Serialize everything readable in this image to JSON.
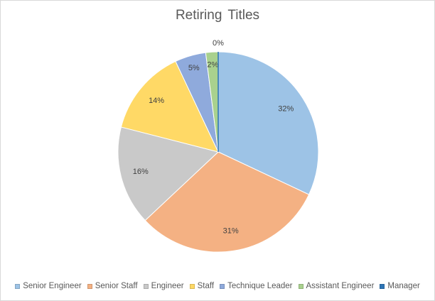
{
  "chart_data": {
    "type": "pie",
    "title": "Retiring Titles",
    "categories": [
      "Senior Engineer",
      "Senior Staff",
      "Engineer",
      "Staff",
      "Technique Leader",
      "Assistant Engineer",
      "Manager"
    ],
    "values": [
      32,
      31,
      16,
      14,
      5,
      2,
      0
    ],
    "labels": [
      "32%",
      "31%",
      "16%",
      "14%",
      "5%",
      "2%",
      "0%"
    ],
    "colors": [
      "#9dc3e6",
      "#f4b183",
      "#c9c9c9",
      "#ffd966",
      "#8faadc",
      "#a9d18e",
      "#2e75b6"
    ],
    "legend_position": "bottom"
  }
}
